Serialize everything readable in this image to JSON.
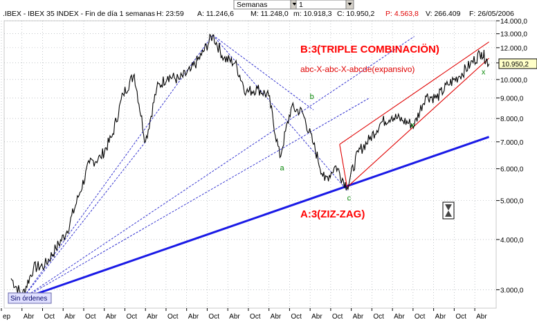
{
  "header": {
    "symbol": ".IBEX - IBEX 35 INDEX - Fin de día 1 semanas",
    "H": "H: 23:59",
    "A": "A: 11.246,6",
    "M": "M: 11.248,0",
    "m": "m: 10.918,3",
    "C": "C: 10.950,2",
    "P": "P: 4.563,8",
    "V": "V: 266.409",
    "F": "F: 26/05/2006"
  },
  "toolbar": {
    "period_value": "Semanas",
    "interval_value": "1"
  },
  "status": {
    "orders_label": "Sin órdenes"
  },
  "colors": {
    "price": "#000000",
    "trend_main": "#1a1ae6",
    "trend_dashed": "#2222cc",
    "channel": "#e00000",
    "annotation_red": "#ff0000",
    "wave_label": "#0a8a0a",
    "last_price_bg": "#ffffc8"
  },
  "chart_data": {
    "type": "line",
    "title": ".IBEX - IBEX 35 INDEX",
    "yscale": "log",
    "ylim": [
      2700,
      14000
    ],
    "y_ticks": [
      3000,
      4000,
      5000,
      6000,
      7000,
      8000,
      9000,
      10000,
      11000,
      12000,
      13000,
      14000
    ],
    "y_tick_labels": [
      "3.000,0",
      "4.000,0",
      "5.000,0",
      "6.000,0",
      "7.000,0",
      "8.000,0",
      "9.000,0",
      "10.000,0",
      "11.000,0",
      "12.000,0",
      "13.000,0",
      "14.000,0"
    ],
    "x_tick_labels": [
      "ep",
      "Abr",
      "Oct",
      "Abr",
      "Oct",
      "Abr",
      "Oct",
      "Abr",
      "Oct",
      "Abr",
      "Oct",
      "Abr",
      "Oct",
      "Abr",
      "Oct",
      "Abr",
      "Oct",
      "Abr",
      "Oct",
      "Abr",
      "Oct",
      "Abr",
      "Oct",
      "Abr"
    ],
    "x_range": [
      "1995-09",
      "2006-05"
    ],
    "last_value_label": "10.950,2",
    "series": [
      {
        "name": "IBEX 35",
        "x": [
          "1995-09",
          "1995-12",
          "1996-03",
          "1996-06",
          "1996-09",
          "1996-12",
          "1997-03",
          "1997-06",
          "1997-09",
          "1997-12",
          "1998-03",
          "1998-06",
          "1998-09",
          "1998-12",
          "1999-03",
          "1999-06",
          "1999-09",
          "1999-12",
          "2000-03",
          "2000-06",
          "2000-09",
          "2000-12",
          "2001-03",
          "2001-06",
          "2001-09",
          "2001-12",
          "2002-03",
          "2002-06",
          "2002-09",
          "2002-12",
          "2003-03",
          "2003-06",
          "2003-09",
          "2003-12",
          "2004-03",
          "2004-06",
          "2004-09",
          "2004-12",
          "2005-03",
          "2005-06",
          "2005-09",
          "2005-12",
          "2006-03",
          "2006-05"
        ],
        "y": [
          3200,
          2900,
          3400,
          3450,
          3800,
          4200,
          5100,
          6200,
          6400,
          7200,
          9200,
          10300,
          7000,
          9500,
          10200,
          10000,
          10500,
          11500,
          12900,
          11300,
          11000,
          9300,
          9500,
          9100,
          6400,
          8500,
          8300,
          6900,
          5600,
          6100,
          5400,
          6600,
          7100,
          7800,
          8100,
          7900,
          7700,
          9100,
          9000,
          9700,
          10200,
          10900,
          11700,
          10950
        ]
      }
    ],
    "trendlines": [
      "blue support line",
      "dashed fan lines",
      "red channel"
    ],
    "annotations": [
      {
        "text": "B:3(TRIPLE COMBINACIÖN)",
        "x": "2005-01",
        "y": 12000
      },
      {
        "text": "abc-X-abc-X-abcde(expansivo)",
        "x": "2005-01",
        "y": 10800
      },
      {
        "text": "A:3(ZIZ-ZAG)",
        "x": "2003-01",
        "y": 4600
      },
      {
        "text": "a",
        "x": "2001-09",
        "y": 5950
      },
      {
        "text": "b",
        "x": "2002-05",
        "y": 8950
      },
      {
        "text": "c",
        "x": "2003-03",
        "y": 5000
      },
      {
        "text": "x",
        "x": "2004-08",
        "y": 7600
      },
      {
        "text": "x",
        "x": "2006-03",
        "y": 10300
      }
    ]
  }
}
